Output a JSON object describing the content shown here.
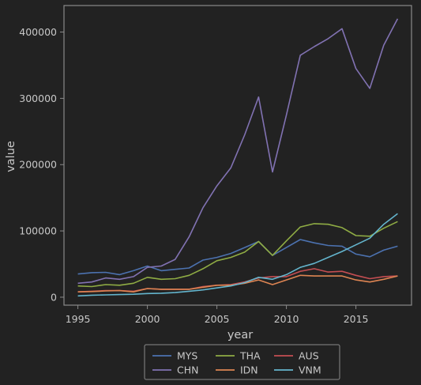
{
  "chart_data": {
    "type": "line",
    "xlabel": "year",
    "ylabel": "value",
    "xlim": [
      1994,
      2019
    ],
    "ylim": [
      -12000,
      440000
    ],
    "xticks": [
      1995,
      2000,
      2005,
      2010,
      2015
    ],
    "yticks": [
      0,
      100000,
      200000,
      300000,
      400000
    ],
    "grid": false,
    "legend_position": "bottom-center",
    "legend_columns": 3,
    "x": [
      1995,
      1996,
      1997,
      1998,
      1999,
      2000,
      2001,
      2002,
      2003,
      2004,
      2005,
      2006,
      2007,
      2008,
      2009,
      2010,
      2011,
      2012,
      2013,
      2014,
      2015,
      2016,
      2017,
      2018
    ],
    "series": [
      {
        "name": "MYS",
        "color": "#4c72b0",
        "values": [
          35000,
          37000,
          37500,
          34000,
          40000,
          47000,
          40000,
          42000,
          44000,
          56000,
          60000,
          66000,
          75000,
          84000,
          63000,
          75000,
          87000,
          82000,
          78000,
          77000,
          65000,
          61000,
          71000,
          77000
        ]
      },
      {
        "name": "THA",
        "color": "#8fac44",
        "values": [
          17000,
          16000,
          19000,
          18000,
          21000,
          30000,
          27000,
          28000,
          33000,
          43000,
          55000,
          60000,
          68000,
          84000,
          63000,
          85000,
          106000,
          111000,
          110000,
          105000,
          93000,
          92000,
          104000,
          114000
        ]
      },
      {
        "name": "AUS",
        "color": "#c44e52",
        "values": [
          8000,
          9000,
          10000,
          10000,
          9000,
          13000,
          12000,
          12000,
          12000,
          16000,
          18000,
          19000,
          23000,
          29000,
          31000,
          31000,
          39000,
          43000,
          38000,
          39000,
          33000,
          28000,
          31000,
          32000
        ]
      },
      {
        "name": "CHN",
        "color": "#8172b2",
        "values": [
          21000,
          23000,
          29000,
          27000,
          31000,
          45000,
          47000,
          57000,
          91000,
          135000,
          168000,
          195000,
          245000,
          302000,
          189000,
          275000,
          365000,
          378000,
          390000,
          405000,
          345000,
          315000,
          380000,
          420000
        ]
      },
      {
        "name": "IDN",
        "color": "#dd8452",
        "values": [
          8000,
          8500,
          9500,
          10000,
          8000,
          13000,
          12000,
          12000,
          12000,
          15000,
          18000,
          18000,
          21000,
          26000,
          19000,
          26000,
          33000,
          32000,
          32000,
          32000,
          26000,
          23000,
          27000,
          32000
        ]
      },
      {
        "name": "VNM",
        "color": "#64b5cd",
        "values": [
          2000,
          3000,
          3500,
          4000,
          4500,
          5500,
          6000,
          7000,
          9000,
          11000,
          14000,
          17000,
          22000,
          30000,
          27000,
          34000,
          45000,
          51000,
          60000,
          69000,
          79000,
          89000,
          110000,
          126000
        ]
      }
    ]
  }
}
